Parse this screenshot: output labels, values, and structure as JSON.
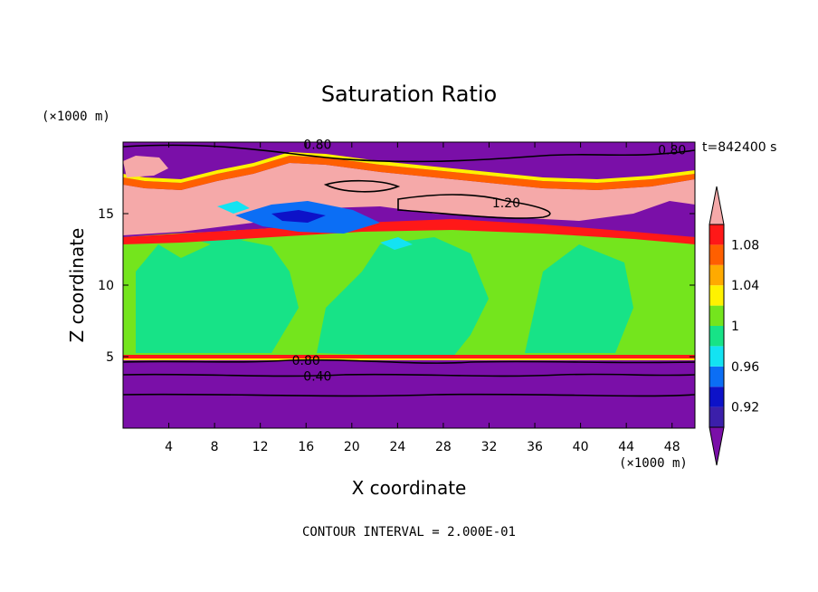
{
  "chart_data": {
    "type": "heatmap",
    "title": "Saturation Ratio",
    "xlabel": "X coordinate",
    "ylabel": "Z coordinate",
    "x_unit": "(×1000 m)",
    "y_unit": "(×1000 m)",
    "time_label": "t=842400 s",
    "footer": "CONTOUR INTERVAL = 2.000E-01",
    "xlim": [
      0,
      50
    ],
    "ylim": [
      0,
      20
    ],
    "x_ticks": [
      "4",
      "8",
      "12",
      "16",
      "20",
      "24",
      "28",
      "32",
      "36",
      "40",
      "44",
      "48"
    ],
    "x_tick_values": [
      4,
      8,
      12,
      16,
      20,
      24,
      28,
      32,
      36,
      40,
      44,
      48
    ],
    "y_ticks": [
      "5",
      "10",
      "15"
    ],
    "y_tick_values": [
      5,
      10,
      15
    ],
    "colorbar": {
      "labels": [
        "0.92",
        "0.96",
        "1",
        "1.04",
        "1.08"
      ],
      "label_values": [
        0.92,
        0.96,
        1.0,
        1.04,
        1.08
      ],
      "levels": [
        0.9,
        0.92,
        0.94,
        0.96,
        0.98,
        1.0,
        1.02,
        1.04,
        1.06,
        1.08,
        1.1
      ],
      "colors": [
        "#7a0fa8",
        "#3b1faa",
        "#0d12c8",
        "#0b6ef5",
        "#13e3f2",
        "#17e387",
        "#74e51d",
        "#fff200",
        "#ffaa00",
        "#ff5f00",
        "#ff1818",
        "#f5a9a9"
      ],
      "extend": "both"
    },
    "contour_labels": [
      {
        "text": "0.80",
        "x": 17,
        "z": 19.6
      },
      {
        "text": "0.80",
        "x": 48,
        "z": 19.2
      },
      {
        "text": "1.20",
        "x": 33.5,
        "z": 15.5
      },
      {
        "text": "0.80",
        "x": 16,
        "z": 4.5
      },
      {
        "text": "0.40",
        "x": 17,
        "z": 3.4
      }
    ],
    "layers": [
      {
        "z_range": [
          0,
          4.8
        ],
        "value": "below 0.90",
        "description_color": "#7a0fa8"
      },
      {
        "z_range": [
          4.8,
          14
        ],
        "value": "0.98–1.02",
        "description_color": "#17e387"
      },
      {
        "z_range": [
          13,
          18
        ],
        "value": "above 1.10",
        "description_color": "#f5a9a9"
      },
      {
        "z_range": [
          18,
          20
        ],
        "value": "below 0.90",
        "description_color": "#7a0fa8"
      }
    ]
  }
}
